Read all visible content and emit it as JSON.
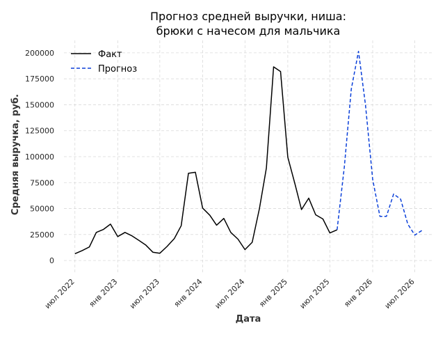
{
  "chart_data": {
    "type": "line",
    "title_lines": [
      "Прогноз средней выручки, ниша:",
      "брюки с начесом для мальчика"
    ],
    "xlabel": "Дата",
    "ylabel": "Средняя выручка, руб.",
    "x_range": [
      "2022-05-15",
      "2026-09-15"
    ],
    "ylim": [
      -12000,
      212000
    ],
    "y_ticks": [
      0,
      25000,
      50000,
      75000,
      100000,
      125000,
      150000,
      175000,
      200000
    ],
    "x_ticks": [
      {
        "date": "2022-07-01",
        "label": "июл 2022"
      },
      {
        "date": "2023-01-01",
        "label": "янв 2023"
      },
      {
        "date": "2023-07-01",
        "label": "июл 2023"
      },
      {
        "date": "2024-01-01",
        "label": "янв 2024"
      },
      {
        "date": "2024-07-01",
        "label": "июл 2024"
      },
      {
        "date": "2025-01-01",
        "label": "янв 2025"
      },
      {
        "date": "2025-07-01",
        "label": "июл 2025"
      },
      {
        "date": "2026-01-01",
        "label": "янв 2026"
      },
      {
        "date": "2026-07-01",
        "label": "июл 2026"
      }
    ],
    "grid": true,
    "legend_position": "top-left",
    "series": [
      {
        "name": "Факт",
        "color": "#000000",
        "style": "solid",
        "points": [
          [
            "2022-07-01",
            6500
          ],
          [
            "2022-08-01",
            9500
          ],
          [
            "2022-09-01",
            13000
          ],
          [
            "2022-10-01",
            27000
          ],
          [
            "2022-11-01",
            30000
          ],
          [
            "2022-12-01",
            35000
          ],
          [
            "2023-01-01",
            23000
          ],
          [
            "2023-02-01",
            27000
          ],
          [
            "2023-03-01",
            24000
          ],
          [
            "2023-04-01",
            19500
          ],
          [
            "2023-05-01",
            15000
          ],
          [
            "2023-06-01",
            8000
          ],
          [
            "2023-07-01",
            7000
          ],
          [
            "2023-08-01",
            13500
          ],
          [
            "2023-09-01",
            21000
          ],
          [
            "2023-10-01",
            33500
          ],
          [
            "2023-11-01",
            84000
          ],
          [
            "2023-12-01",
            85000
          ],
          [
            "2024-01-01",
            50500
          ],
          [
            "2024-02-01",
            43500
          ],
          [
            "2024-03-01",
            34000
          ],
          [
            "2024-04-01",
            40500
          ],
          [
            "2024-05-01",
            27000
          ],
          [
            "2024-06-01",
            20500
          ],
          [
            "2024-07-01",
            10500
          ],
          [
            "2024-08-01",
            17500
          ],
          [
            "2024-09-01",
            50000
          ],
          [
            "2024-10-01",
            89000
          ],
          [
            "2024-11-01",
            186500
          ],
          [
            "2024-12-01",
            182000
          ],
          [
            "2025-01-01",
            99500
          ],
          [
            "2025-02-01",
            73500
          ],
          [
            "2025-03-01",
            49000
          ],
          [
            "2025-04-01",
            60000
          ],
          [
            "2025-05-01",
            44000
          ],
          [
            "2025-06-01",
            40000
          ],
          [
            "2025-07-01",
            26500
          ],
          [
            "2025-08-01",
            29500
          ]
        ]
      },
      {
        "name": "Прогноз",
        "color": "#0a3fd9",
        "style": "dashed",
        "points": [
          [
            "2025-08-01",
            29500
          ],
          [
            "2025-09-01",
            90000
          ],
          [
            "2025-10-01",
            165000
          ],
          [
            "2025-11-01",
            201500
          ],
          [
            "2025-12-01",
            150000
          ],
          [
            "2026-01-01",
            78000
          ],
          [
            "2026-02-01",
            42500
          ],
          [
            "2026-03-01",
            42500
          ],
          [
            "2026-04-01",
            64000
          ],
          [
            "2026-05-01",
            59000
          ],
          [
            "2026-06-01",
            35000
          ],
          [
            "2026-07-01",
            24500
          ],
          [
            "2026-08-01",
            29000
          ]
        ]
      }
    ]
  }
}
